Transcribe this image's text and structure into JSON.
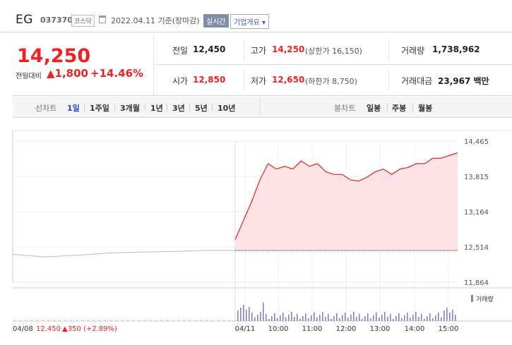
{
  "header": {
    "name": "EG",
    "code": "037370",
    "market": "코스닥",
    "date": "2022.04.11",
    "basis": "기준(장마감)",
    "realtime_label": "실시간",
    "company_label": "기업개요 ▾"
  },
  "price": {
    "current": "14,250",
    "change_label": "전일대비",
    "change": "▲1,800",
    "change_pct": "+14.46%"
  },
  "stats": {
    "prev_label": "전일",
    "prev": "12,450",
    "high_label": "고가",
    "high": "14,250",
    "upper_limit": "(상한가 16,150)",
    "volume_label": "거래량",
    "volume": "1,738,962",
    "open_label": "시가",
    "open": "12,850",
    "low_label": "저가",
    "low": "12,650",
    "lower_limit": "(하한가 8,750)",
    "amount_label": "거래대금",
    "amount": "23,967 백만"
  },
  "tabs": {
    "line_label": "선차트",
    "periods": [
      "1일",
      "1주일",
      "3개월",
      "1년",
      "3년",
      "5년",
      "10년"
    ],
    "candle_label": "봉차트",
    "candles": [
      "일봉",
      "주봉",
      "월봉"
    ]
  },
  "colors": {
    "up": "#e22222",
    "area": "#fde3e5",
    "prev_line": "#bbbbbb",
    "volume": "#8a7fc4",
    "active_tab": "#2c47c6"
  },
  "chart_data": {
    "type": "line",
    "y_ticks": [
      "14,465",
      "13,815",
      "13,164",
      "12,514",
      "11,864"
    ],
    "ylim": [
      11864,
      14465
    ],
    "x_ticks": [
      "04/11",
      "10:00",
      "11:00",
      "12:00",
      "13:00",
      "14:00",
      "15:00"
    ],
    "prev_close": 12450,
    "series": [
      {
        "name": "",
        "x": [
          "04/08 09:00",
          "04/08 10:00",
          "04/08 11:00",
          "04/08 12:00",
          "04/08 13:00",
          "04/08 14:00",
          "04/08 15:00",
          "04/08 15:30"
        ],
        "values": [
          12380,
          12330,
          12360,
          12400,
          12420,
          12430,
          12450,
          12450
        ]
      },
      {
        "name": "",
        "x": [
          "09:00",
          "09:10",
          "09:20",
          "09:30",
          "09:45",
          "10:00",
          "10:15",
          "10:30",
          "10:45",
          "11:00",
          "11:15",
          "11:30",
          "11:45",
          "12:00",
          "12:15",
          "12:30",
          "12:45",
          "13:00",
          "13:15",
          "13:30",
          "13:45",
          "14:00",
          "14:15",
          "14:30",
          "14:45",
          "15:00",
          "15:15",
          "15:20"
        ],
        "values": [
          12650,
          13000,
          13350,
          13750,
          14050,
          13950,
          14000,
          13950,
          14100,
          14000,
          14050,
          13900,
          13850,
          13850,
          13750,
          13730,
          13800,
          13900,
          13950,
          13850,
          13950,
          13980,
          14050,
          14050,
          14150,
          14150,
          14200,
          14250
        ]
      }
    ],
    "volume_label": "거래량",
    "footer": {
      "date": "04/08",
      "close": "12,450",
      "change": "▲350",
      "pct": "(+2.89%)"
    }
  }
}
